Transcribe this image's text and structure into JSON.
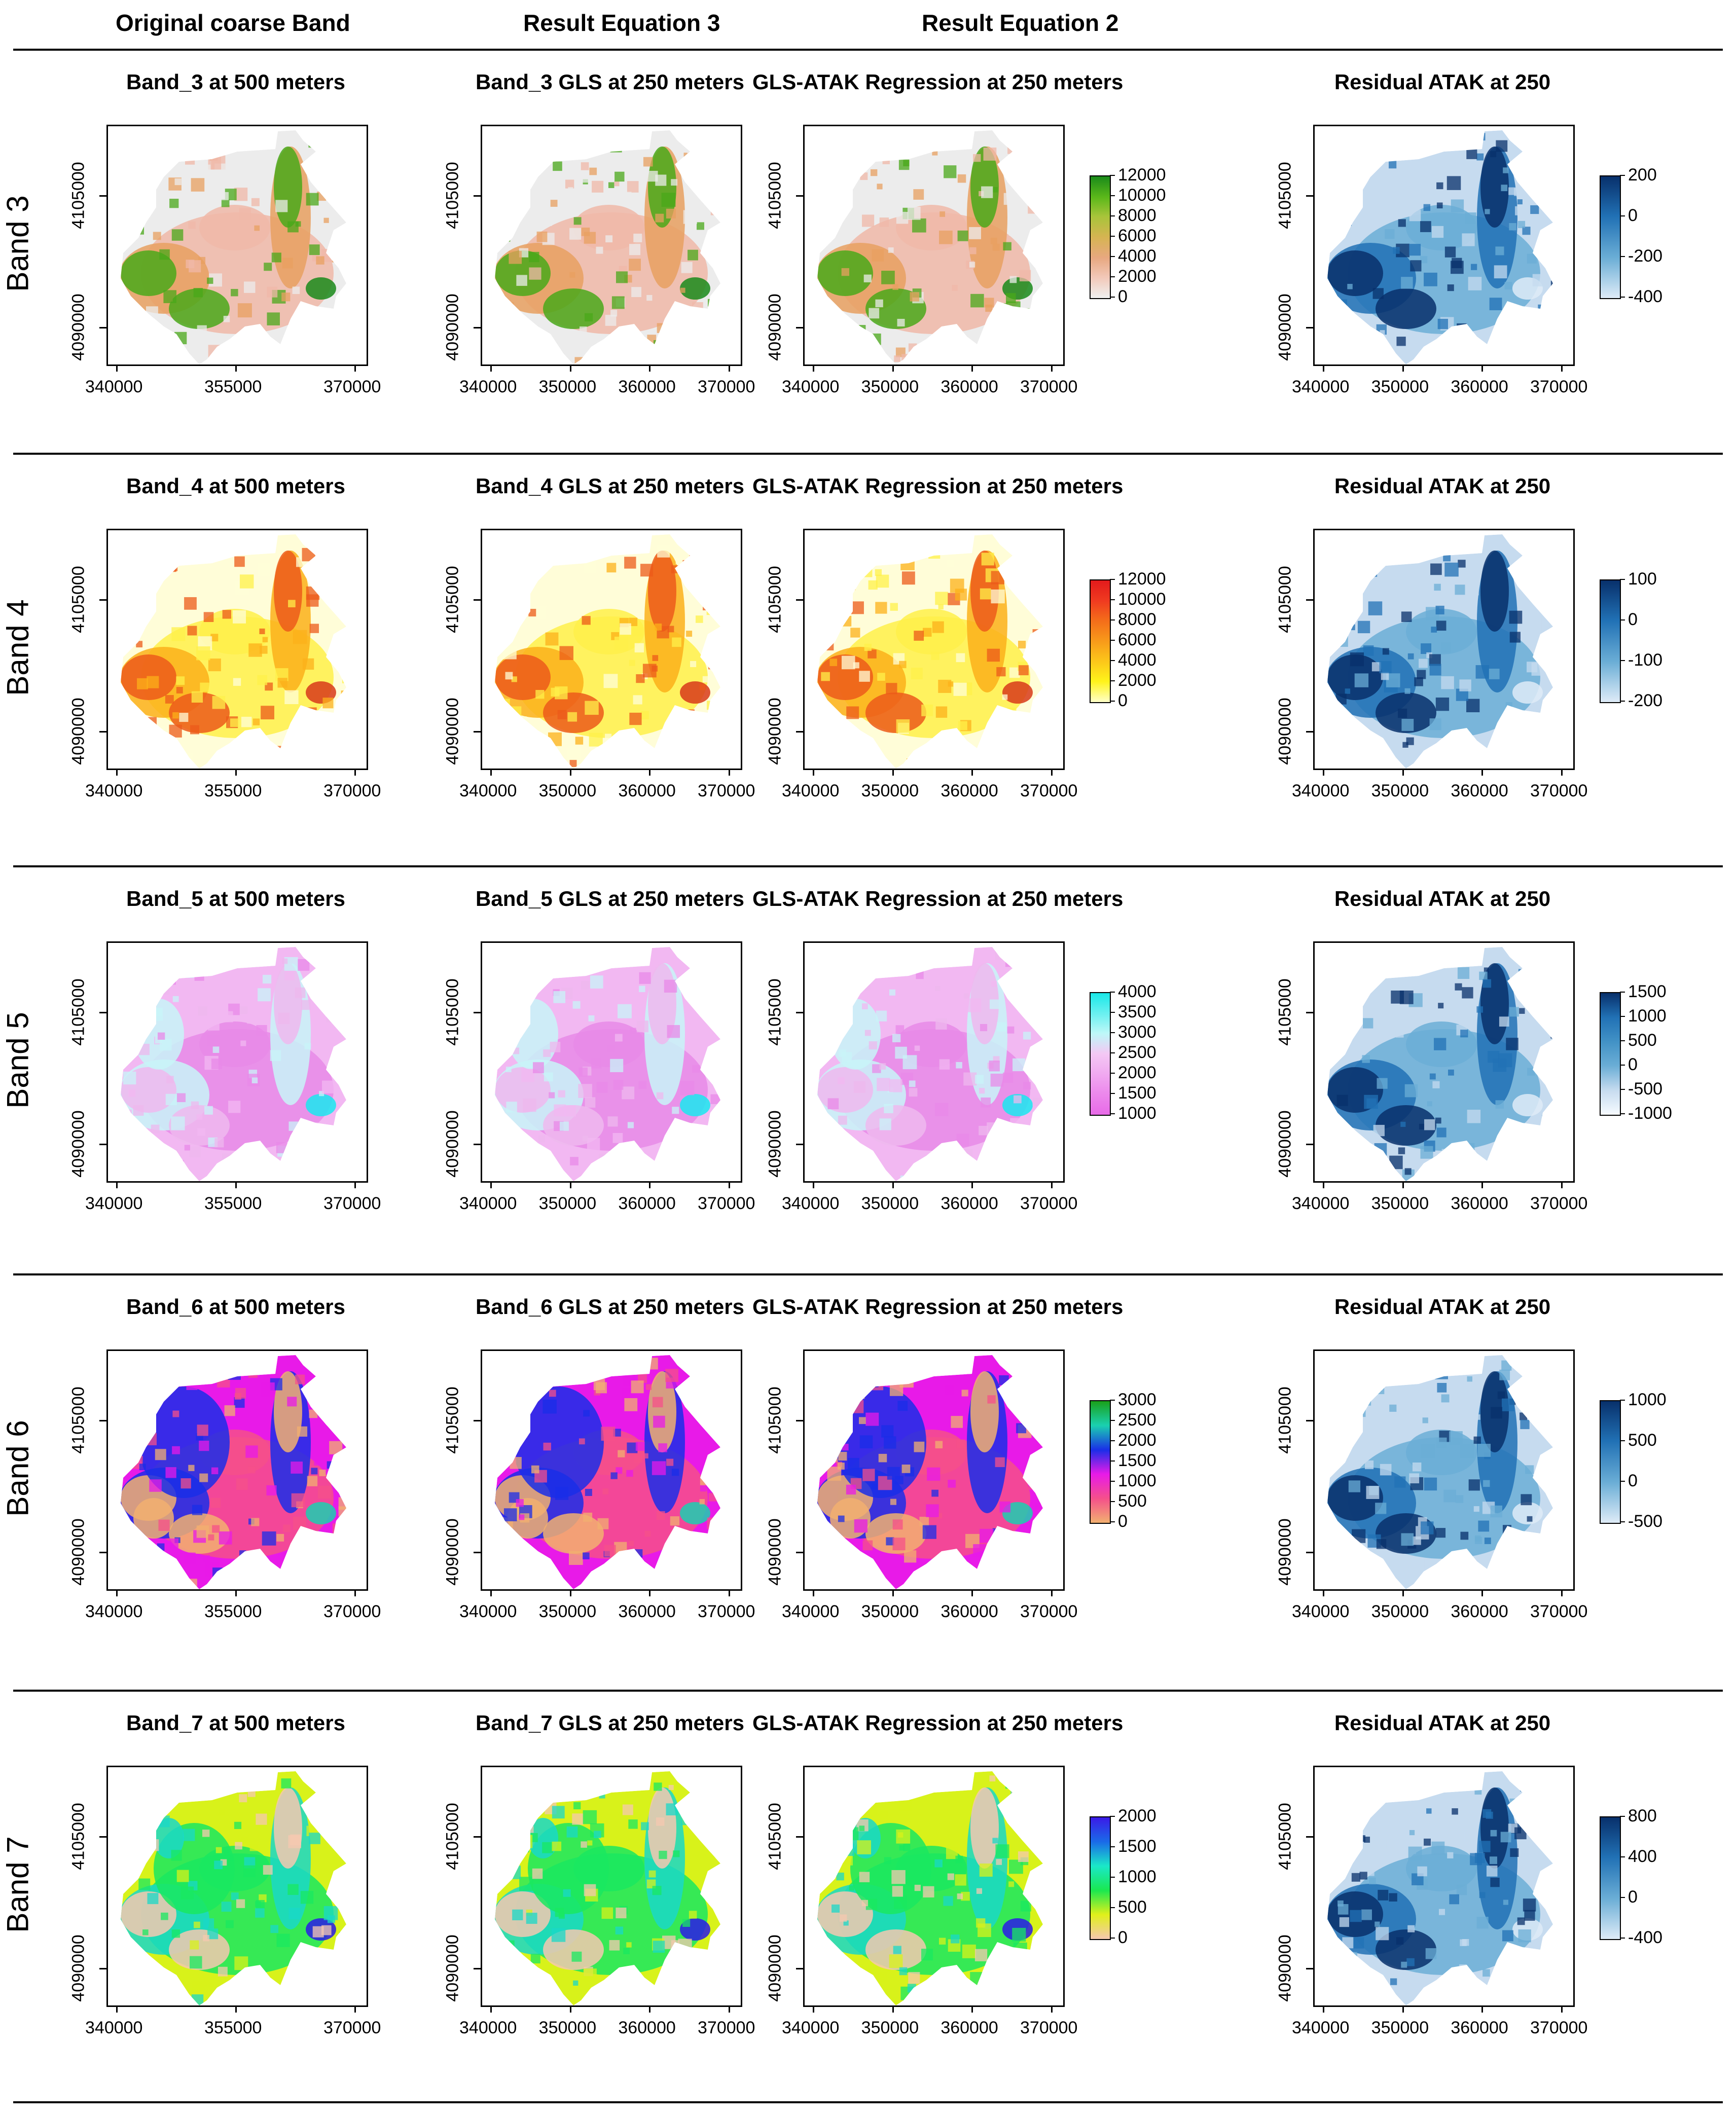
{
  "column_headers": [
    "Original coarse Band",
    "Result Equation 3",
    "Result Equation 2"
  ],
  "rows": [
    {
      "label": "Band 3",
      "panels": [
        {
          "title": "Band_3 at 500 meters",
          "xticks": [
            "340000",
            "355000",
            "370000"
          ],
          "yticks": [
            "4090000",
            "4105000"
          ],
          "palette": "terrain",
          "legend": null
        },
        {
          "title": "Band_3 GLS at 250 meters",
          "xticks": [
            "340000",
            "350000",
            "360000",
            "370000"
          ],
          "yticks": [
            "4090000",
            "4105000"
          ],
          "palette": "terrain",
          "legend": null
        },
        {
          "title": "GLS-ATAK Regression at 250 meters",
          "xticks": [
            "340000",
            "350000",
            "360000",
            "370000"
          ],
          "yticks": [
            "4090000",
            "4105000"
          ],
          "palette": "terrain",
          "legend": {
            "labels": [
              "12000",
              "10000",
              "8000",
              "6000",
              "4000",
              "2000",
              "0"
            ],
            "colors": [
              "#1a8a1a",
              "#5bb81a",
              "#a8c43a",
              "#d6b452",
              "#e8a880",
              "#f2c8b8",
              "#f0f0f0"
            ]
          }
        },
        {
          "title": "Residual ATAK at 250",
          "xticks": [
            "340000",
            "350000",
            "360000",
            "370000"
          ],
          "yticks": [
            "4090000",
            "4105000"
          ],
          "palette": "blues",
          "legend": {
            "labels": [
              "200",
              "0",
              "-200",
              "-400"
            ],
            "colors": [
              "#08306b",
              "#2171b5",
              "#6baed6",
              "#deebf7"
            ]
          }
        }
      ]
    },
    {
      "label": "Band 4",
      "panels": [
        {
          "title": "Band_4 at 500 meters",
          "xticks": [
            "340000",
            "355000",
            "370000"
          ],
          "yticks": [
            "4090000",
            "4105000"
          ],
          "palette": "heat",
          "legend": null
        },
        {
          "title": "Band_4 GLS at 250 meters",
          "xticks": [
            "340000",
            "350000",
            "360000",
            "370000"
          ],
          "yticks": [
            "4090000",
            "4105000"
          ],
          "palette": "heat",
          "legend": null
        },
        {
          "title": "GLS-ATAK Regression at 250 meters",
          "xticks": [
            "340000",
            "350000",
            "360000",
            "370000"
          ],
          "yticks": [
            "4090000",
            "4105000"
          ],
          "palette": "heat",
          "legend": {
            "labels": [
              "12000",
              "10000",
              "8000",
              "6000",
              "4000",
              "2000",
              "0"
            ],
            "colors": [
              "#e31a1c",
              "#f03b20",
              "#f46d1a",
              "#f89a1a",
              "#fcc81a",
              "#fff31a",
              "#ffffc8"
            ]
          }
        },
        {
          "title": "Residual ATAK at 250",
          "xticks": [
            "340000",
            "350000",
            "360000",
            "370000"
          ],
          "yticks": [
            "4090000",
            "4105000"
          ],
          "palette": "blues",
          "legend": {
            "labels": [
              "100",
              "0",
              "-100",
              "-200"
            ],
            "colors": [
              "#08306b",
              "#2171b5",
              "#6baed6",
              "#deebf7"
            ]
          }
        }
      ]
    },
    {
      "label": "Band 5",
      "panels": [
        {
          "title": "Band_5 at 500 meters",
          "xticks": [
            "340000",
            "355000",
            "370000"
          ],
          "yticks": [
            "4090000",
            "4105000"
          ],
          "palette": "pink",
          "legend": null
        },
        {
          "title": "Band_5 GLS at 250 meters",
          "xticks": [
            "340000",
            "350000",
            "360000",
            "370000"
          ],
          "yticks": [
            "4090000",
            "4105000"
          ],
          "palette": "pink",
          "legend": null
        },
        {
          "title": "GLS-ATAK Regression at 250 meters",
          "xticks": [
            "340000",
            "350000",
            "360000",
            "370000"
          ],
          "yticks": [
            "4090000",
            "4105000"
          ],
          "palette": "pink",
          "legend": {
            "labels": [
              "4000",
              "3500",
              "3000",
              "2500",
              "2000",
              "1500",
              "1000"
            ],
            "colors": [
              "#1ae8e8",
              "#6af0f0",
              "#bdf8f8",
              "#f4c8f4",
              "#f0a8f0",
              "#ec88ec",
              "#e86ae8"
            ]
          }
        },
        {
          "title": "Residual ATAK at 250",
          "xticks": [
            "340000",
            "350000",
            "360000",
            "370000"
          ],
          "yticks": [
            "4090000",
            "4105000"
          ],
          "palette": "blues",
          "legend": {
            "labels": [
              "1500",
              "1000",
              "500",
              "0",
              "-500",
              "-1000"
            ],
            "colors": [
              "#08306b",
              "#2171b5",
              "#4292c6",
              "#6baed6",
              "#c6dbef",
              "#f7fbff"
            ]
          }
        }
      ]
    },
    {
      "label": "Band 6",
      "panels": [
        {
          "title": "Band_6 at 500 meters",
          "xticks": [
            "340000",
            "355000",
            "370000"
          ],
          "yticks": [
            "4090000",
            "4105000"
          ],
          "palette": "rainbow",
          "legend": null
        },
        {
          "title": "Band_6 GLS at 250 meters",
          "xticks": [
            "340000",
            "350000",
            "360000",
            "370000"
          ],
          "yticks": [
            "4090000",
            "4105000"
          ],
          "palette": "rainbow",
          "legend": null
        },
        {
          "title": "GLS-ATAK Regression at 250 meters",
          "xticks": [
            "340000",
            "350000",
            "360000",
            "370000"
          ],
          "yticks": [
            "4090000",
            "4105000"
          ],
          "palette": "rainbow",
          "legend": {
            "labels": [
              "3000",
              "2500",
              "2000",
              "1500",
              "1000",
              "500",
              "0"
            ],
            "colors": [
              "#1aa01a",
              "#1ad0b0",
              "#1a2ee8",
              "#e81ae8",
              "#f5508a",
              "#f2b070"
            ]
          }
        },
        {
          "title": "Residual ATAK at 250",
          "xticks": [
            "340000",
            "350000",
            "360000",
            "370000"
          ],
          "yticks": [
            "4090000",
            "4105000"
          ],
          "palette": "blues",
          "legend": {
            "labels": [
              "1000",
              "500",
              "0",
              "-500"
            ],
            "colors": [
              "#08306b",
              "#2171b5",
              "#6baed6",
              "#deebf7"
            ]
          }
        }
      ]
    },
    {
      "label": "Band 7",
      "panels": [
        {
          "title": "Band_7 at 500 meters",
          "xticks": [
            "340000",
            "355000",
            "370000"
          ],
          "yticks": [
            "4090000",
            "4105000"
          ],
          "palette": "lime",
          "legend": null
        },
        {
          "title": "Band_7 GLS at 250 meters",
          "xticks": [
            "340000",
            "350000",
            "360000",
            "370000"
          ],
          "yticks": [
            "4090000",
            "4105000"
          ],
          "palette": "lime",
          "legend": null
        },
        {
          "title": "GLS-ATAK Regression at 250 meters",
          "xticks": [
            "340000",
            "350000",
            "360000",
            "370000"
          ],
          "yticks": [
            "4090000",
            "4105000"
          ],
          "palette": "lime",
          "legend": {
            "labels": [
              "2000",
              "1500",
              "1000",
              "500",
              "0"
            ],
            "colors": [
              "#3a1ae8",
              "#1a6ae8",
              "#1ae8c8",
              "#1ae850",
              "#e0f01a",
              "#f5c8b0"
            ]
          }
        },
        {
          "title": "Residual ATAK at 250",
          "xticks": [
            "340000",
            "350000",
            "360000",
            "370000"
          ],
          "yticks": [
            "4090000",
            "4105000"
          ],
          "palette": "blues",
          "legend": {
            "labels": [
              "800",
              "400",
              "0",
              "-400"
            ],
            "colors": [
              "#08306b",
              "#2171b5",
              "#6baed6",
              "#deebf7"
            ]
          }
        }
      ]
    }
  ],
  "palettes": {
    "terrain": {
      "base": "#ececec",
      "mid": "#f0b8a8",
      "high": "#e8a060",
      "top": "#4aa81a",
      "accent": "#1a8a1a"
    },
    "heat": {
      "base": "#fffdd8",
      "mid": "#fff04a",
      "high": "#fcb01a",
      "top": "#ec5a1a",
      "accent": "#d83a1a"
    },
    "pink": {
      "base": "#f2b8f2",
      "mid": "#e88ae8",
      "high": "#c8f4f8",
      "top": "#eeb8ee",
      "accent": "#1ae8f0"
    },
    "rainbow": {
      "base": "#e81ae8",
      "mid": "#f5508a",
      "high": "#1a2ee8",
      "top": "#f2b070",
      "accent": "#1ad0b0"
    },
    "lime": {
      "base": "#d8f21a",
      "mid": "#1ae860",
      "high": "#1ad8c8",
      "top": "#f5c8b0",
      "accent": "#2a1ae8"
    },
    "blues": {
      "base": "#c6dbef",
      "mid": "#6baed6",
      "high": "#2171b5",
      "top": "#08306b",
      "accent": "#deebf7"
    }
  }
}
